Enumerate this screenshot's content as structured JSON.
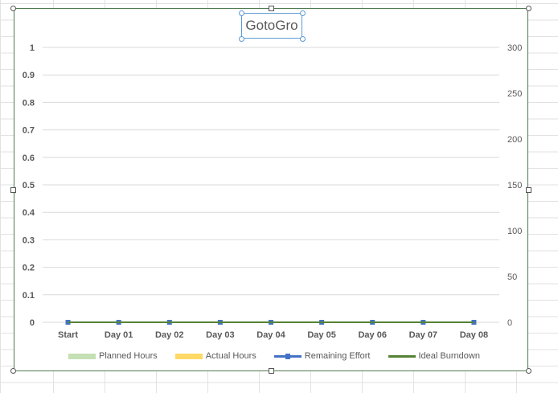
{
  "chart_data": {
    "type": "bar",
    "title": "GotoGro",
    "categories": [
      "Start",
      "Day 01",
      "Day 02",
      "Day 03",
      "Day 04",
      "Day 05",
      "Day 06",
      "Day 07",
      "Day 08"
    ],
    "y_left_ticks": [
      "0",
      "0.1",
      "0.2",
      "0.3",
      "0.4",
      "0.5",
      "0.6",
      "0.7",
      "0.8",
      "0.9",
      "1"
    ],
    "y_right_ticks": [
      "0",
      "50",
      "100",
      "150",
      "200",
      "250",
      "300"
    ],
    "ylim_left": [
      0,
      1
    ],
    "ylim_right": [
      0,
      300
    ],
    "grid": true,
    "legend_position": "bottom",
    "series": [
      {
        "name": "Planned Hours",
        "kind": "bar",
        "axis": "left",
        "color": "#c5e0b4",
        "values": [
          0,
          0,
          0,
          0,
          0,
          0,
          0,
          0,
          0
        ]
      },
      {
        "name": "Actual Hours",
        "kind": "bar",
        "axis": "left",
        "color": "#ffd966",
        "values": [
          0,
          0,
          0,
          0,
          0,
          0,
          0,
          0,
          0
        ]
      },
      {
        "name": "Remaining Effort",
        "kind": "line-marker",
        "axis": "right",
        "color": "#4472c4",
        "values": [
          0,
          0,
          0,
          0,
          0,
          0,
          0,
          0,
          0
        ]
      },
      {
        "name": "Ideal Burndown",
        "kind": "line",
        "axis": "right",
        "color": "#548235",
        "values": [
          0,
          0,
          0,
          0,
          0,
          0,
          0,
          0,
          0
        ]
      }
    ]
  },
  "legend": {
    "planned": "Planned Hours",
    "actual": "Actual Hours",
    "remaining": "Remaining Effort",
    "ideal": "Ideal Burndown"
  },
  "colors": {
    "grid": "#d9d9d9",
    "axis_text": "#595959",
    "frame": "#4f7a4f",
    "selection": "#5b9bd5",
    "sheet_grid": "#e2e2e2"
  }
}
